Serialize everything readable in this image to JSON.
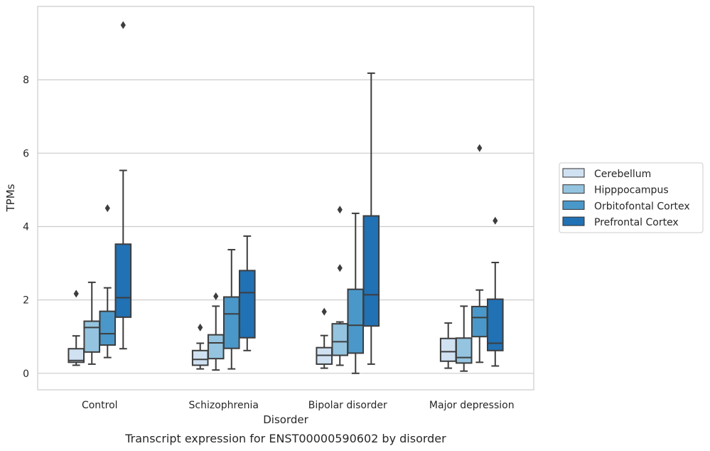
{
  "chart_data": {
    "type": "box",
    "title": "Transcript expression for ENST00000590602 by disorder",
    "xlabel": "Disorder",
    "ylabel": "TPMs",
    "ylim": [
      -0.45,
      10.0
    ],
    "yticks": [
      0,
      2,
      4,
      6,
      8
    ],
    "grid": true,
    "legend_placement": "right",
    "categories": [
      "Control",
      "Schizophrenia",
      "Bipolar disorder",
      "Major depression"
    ],
    "series": [
      {
        "name": "Cerebellum",
        "color": "#d0e1f2",
        "boxes": [
          {
            "whislo": 0.22,
            "q1": 0.3,
            "med": 0.35,
            "q3": 0.67,
            "whishi": 1.02,
            "fliers": [
              2.17
            ]
          },
          {
            "whislo": 0.12,
            "q1": 0.22,
            "med": 0.38,
            "q3": 0.62,
            "whishi": 0.82,
            "fliers": [
              1.25
            ]
          },
          {
            "whislo": 0.14,
            "q1": 0.25,
            "med": 0.49,
            "q3": 0.7,
            "whishi": 1.03,
            "fliers": [
              1.68
            ]
          },
          {
            "whislo": 0.14,
            "q1": 0.33,
            "med": 0.59,
            "q3": 0.95,
            "whishi": 1.37,
            "fliers": []
          }
        ]
      },
      {
        "name": "Hipppocampus",
        "color": "#94c4df",
        "boxes": [
          {
            "whislo": 0.25,
            "q1": 0.58,
            "med": 1.25,
            "q3": 1.42,
            "whishi": 2.48,
            "fliers": []
          },
          {
            "whislo": 0.09,
            "q1": 0.4,
            "med": 0.83,
            "q3": 1.05,
            "whishi": 1.83,
            "fliers": [
              2.1
            ]
          },
          {
            "whislo": 0.22,
            "q1": 0.49,
            "med": 0.86,
            "q3": 1.35,
            "whishi": 1.4,
            "fliers": [
              2.87,
              4.46
            ]
          },
          {
            "whislo": 0.06,
            "q1": 0.28,
            "med": 0.43,
            "q3": 0.96,
            "whishi": 1.83,
            "fliers": []
          }
        ]
      },
      {
        "name": "Orbitofontal Cortex",
        "color": "#4a98c9",
        "boxes": [
          {
            "whislo": 0.43,
            "q1": 0.77,
            "med": 1.08,
            "q3": 1.69,
            "whishi": 2.33,
            "fliers": [
              4.5
            ]
          },
          {
            "whislo": 0.12,
            "q1": 0.68,
            "med": 1.62,
            "q3": 2.08,
            "whishi": 3.37,
            "fliers": []
          },
          {
            "whislo": 0.0,
            "q1": 0.55,
            "med": 1.31,
            "q3": 2.29,
            "whishi": 4.36,
            "fliers": []
          },
          {
            "whislo": 0.3,
            "q1": 1.0,
            "med": 1.52,
            "q3": 1.82,
            "whishi": 2.27,
            "fliers": [
              6.14
            ]
          }
        ]
      },
      {
        "name": "Prefrontal Cortex",
        "color": "#2171b5",
        "boxes": [
          {
            "whislo": 0.67,
            "q1": 1.53,
            "med": 2.06,
            "q3": 3.52,
            "whishi": 5.53,
            "fliers": [
              9.49
            ]
          },
          {
            "whislo": 0.62,
            "q1": 0.97,
            "med": 2.2,
            "q3": 2.8,
            "whishi": 3.74,
            "fliers": []
          },
          {
            "whislo": 0.25,
            "q1": 1.29,
            "med": 2.14,
            "q3": 4.29,
            "whishi": 8.18,
            "fliers": []
          },
          {
            "whislo": 0.2,
            "q1": 0.62,
            "med": 0.82,
            "q3": 2.02,
            "whishi": 3.02,
            "fliers": [
              4.16
            ]
          }
        ]
      }
    ]
  }
}
